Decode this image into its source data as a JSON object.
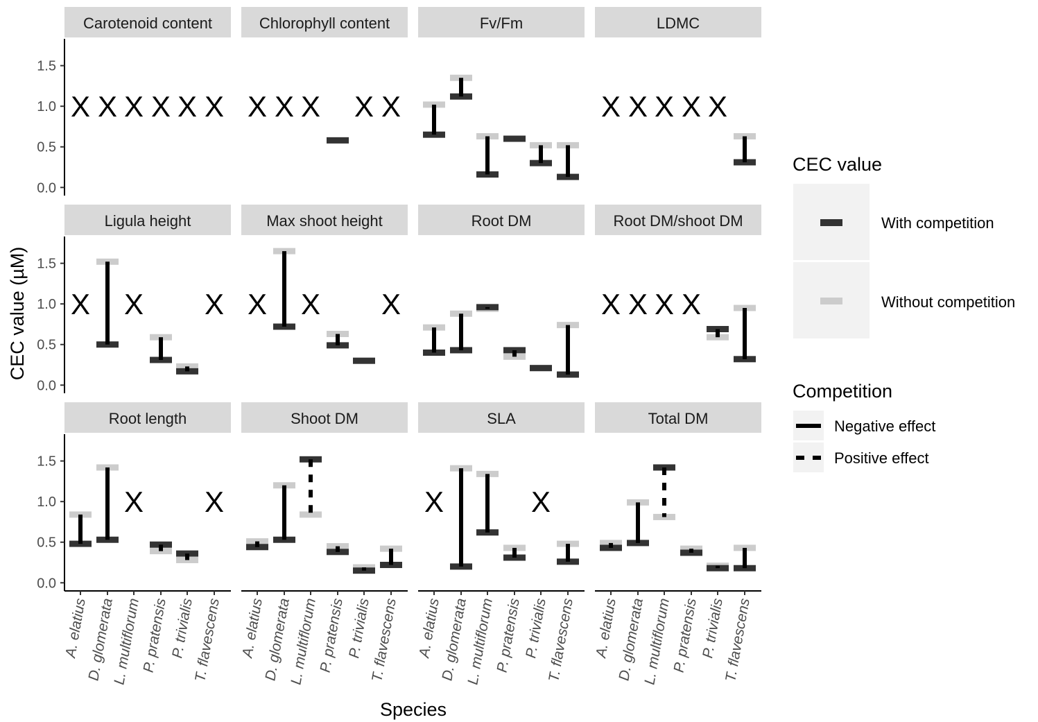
{
  "chart_data": {
    "type": "faceted-range",
    "ylabel": "CEC value (µM)",
    "xlabel": "Species",
    "ylim": [
      -0.1,
      1.83
    ],
    "yticks": [
      0.0,
      0.5,
      1.0,
      1.5
    ],
    "ytick_labels": [
      "0.0",
      "0.5",
      "1.0",
      "1.5"
    ],
    "species": [
      "A. elatius",
      "D. glomerata",
      "L. multiflorum",
      "P. pratensis",
      "P. trivialis",
      "T. flavescens"
    ],
    "missing_marker": "X",
    "missing_value": 1.0,
    "colors": {
      "with": "#333333",
      "without": "#cccccc",
      "line": "#000000",
      "strip": "#d9d9d9",
      "legend_key_bg": "#f2f2f2"
    },
    "legend": {
      "position": "right",
      "cec_title": "CEC value",
      "cec_items": [
        {
          "label": "With competition",
          "key": "with"
        },
        {
          "label": "Without competition",
          "key": "without"
        }
      ],
      "competition_title": "Competition",
      "competition_items": [
        {
          "label": "Negative effect",
          "linetype": "solid"
        },
        {
          "label": "Positive effect",
          "linetype": "dashed"
        }
      ]
    },
    "facets": [
      {
        "title": "Carotenoid content",
        "data": [
          null,
          null,
          null,
          null,
          null,
          null
        ]
      },
      {
        "title": "Chlorophyll content",
        "data": [
          null,
          null,
          null,
          {
            "with": 0.58,
            "without": 0.58,
            "effect": "negative"
          },
          null,
          null
        ]
      },
      {
        "title": "Fv/Fm",
        "data": [
          {
            "with": 0.65,
            "without": 1.02,
            "effect": "negative"
          },
          {
            "with": 1.12,
            "without": 1.35,
            "effect": "negative"
          },
          {
            "with": 0.16,
            "without": 0.63,
            "effect": "negative"
          },
          {
            "with": 0.6,
            "without": 0.6,
            "effect": "negative"
          },
          {
            "with": 0.3,
            "without": 0.52,
            "effect": "negative"
          },
          {
            "with": 0.13,
            "without": 0.52,
            "effect": "negative"
          }
        ]
      },
      {
        "title": "LDMC",
        "data": [
          null,
          null,
          null,
          null,
          null,
          {
            "with": 0.31,
            "without": 0.63,
            "effect": "negative"
          }
        ]
      },
      {
        "title": "Ligula height",
        "data": [
          null,
          {
            "with": 0.5,
            "without": 1.52,
            "effect": "negative"
          },
          null,
          {
            "with": 0.31,
            "without": 0.59,
            "effect": "negative"
          },
          {
            "with": 0.17,
            "without": 0.23,
            "effect": "negative"
          },
          null
        ]
      },
      {
        "title": "Max shoot height",
        "data": [
          null,
          {
            "with": 0.72,
            "without": 1.65,
            "effect": "negative"
          },
          null,
          {
            "with": 0.49,
            "without": 0.63,
            "effect": "negative"
          },
          {
            "with": 0.3,
            "without": 0.3,
            "effect": "negative"
          },
          null
        ]
      },
      {
        "title": "Root DM",
        "data": [
          {
            "with": 0.4,
            "without": 0.71,
            "effect": "negative"
          },
          {
            "with": 0.43,
            "without": 0.88,
            "effect": "negative"
          },
          {
            "with": 0.96,
            "without": 0.94,
            "effect": "negative"
          },
          {
            "with": 0.43,
            "without": 0.35,
            "effect": "negative"
          },
          {
            "with": 0.21,
            "without": 0.21,
            "effect": "negative"
          },
          {
            "with": 0.13,
            "without": 0.74,
            "effect": "negative"
          }
        ]
      },
      {
        "title": "Root DM/shoot DM",
        "data": [
          null,
          null,
          null,
          null,
          {
            "with": 0.69,
            "without": 0.59,
            "effect": "negative"
          },
          {
            "with": 0.32,
            "without": 0.95,
            "effect": "negative"
          }
        ]
      },
      {
        "title": "Root length",
        "data": [
          {
            "with": 0.48,
            "without": 0.84,
            "effect": "negative"
          },
          {
            "with": 0.53,
            "without": 1.42,
            "effect": "negative"
          },
          null,
          {
            "with": 0.47,
            "without": 0.39,
            "effect": "negative"
          },
          {
            "with": 0.36,
            "without": 0.28,
            "effect": "negative"
          },
          null
        ]
      },
      {
        "title": "Shoot DM",
        "data": [
          {
            "with": 0.44,
            "without": 0.51,
            "effect": "negative"
          },
          {
            "with": 0.53,
            "without": 1.2,
            "effect": "negative"
          },
          {
            "with": 1.52,
            "without": 0.84,
            "effect": "positive"
          },
          {
            "with": 0.38,
            "without": 0.45,
            "effect": "negative"
          },
          {
            "with": 0.15,
            "without": 0.19,
            "effect": "negative"
          },
          {
            "with": 0.22,
            "without": 0.42,
            "effect": "negative"
          }
        ]
      },
      {
        "title": "SLA",
        "data": [
          null,
          {
            "with": 0.2,
            "without": 1.41,
            "effect": "negative"
          },
          {
            "with": 0.62,
            "without": 1.34,
            "effect": "negative"
          },
          {
            "with": 0.31,
            "without": 0.43,
            "effect": "negative"
          },
          null,
          {
            "with": 0.26,
            "without": 0.48,
            "effect": "negative"
          }
        ]
      },
      {
        "title": "Total DM",
        "data": [
          {
            "with": 0.43,
            "without": 0.49,
            "effect": "negative"
          },
          {
            "with": 0.49,
            "without": 0.99,
            "effect": "negative"
          },
          {
            "with": 1.42,
            "without": 0.81,
            "effect": "positive"
          },
          {
            "with": 0.37,
            "without": 0.42,
            "effect": "negative"
          },
          {
            "with": 0.18,
            "without": 0.21,
            "effect": "negative"
          },
          {
            "with": 0.18,
            "without": 0.43,
            "effect": "negative"
          }
        ]
      }
    ]
  }
}
